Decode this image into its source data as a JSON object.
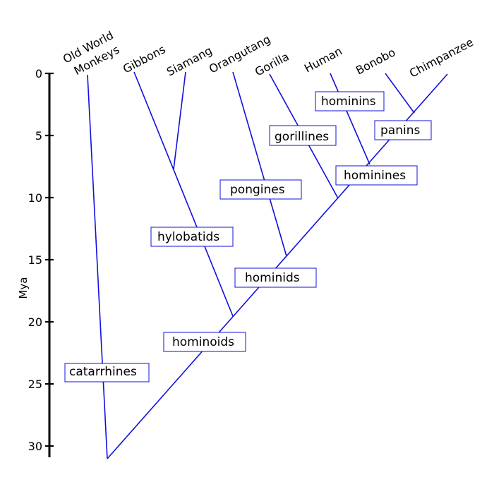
{
  "axis": {
    "title": "Mya",
    "ticks": [
      {
        "value": 0,
        "label": "0"
      },
      {
        "value": 5,
        "label": "5"
      },
      {
        "value": 10,
        "label": "10"
      },
      {
        "value": 15,
        "label": "15"
      },
      {
        "value": 20,
        "label": "20"
      },
      {
        "value": 25,
        "label": "25"
      },
      {
        "value": 30,
        "label": "30"
      }
    ]
  },
  "taxa": {
    "old_world_monkeys_line1": "Old World",
    "old_world_monkeys_line2": "Monkeys",
    "gibbons": "Gibbons",
    "siamang": "Siamang",
    "orangutang": "Orangutang",
    "gorilla": "Gorilla",
    "human": "Human",
    "bonobo": "Bonobo",
    "chimpanzee": "Chimpanzee"
  },
  "clades": {
    "catarrhines": "catarrhines",
    "hominoids": "hominoids",
    "hylobatids": "hylobatids",
    "hominids": "hominids",
    "pongines": "pongines",
    "gorillines": "gorillines",
    "hominines": "hominines",
    "hominins": "hominins",
    "panins": "panins"
  },
  "divergence_mya": {
    "catarrhines": 30.8,
    "hominoids": 19.5,
    "hylobatids": 7.8,
    "hominids": 14.8,
    "homininae": 10.0,
    "hominini": 7.0,
    "panini": 3.1
  },
  "colors": {
    "branch": "#1010e0",
    "axis": "#000000"
  }
}
